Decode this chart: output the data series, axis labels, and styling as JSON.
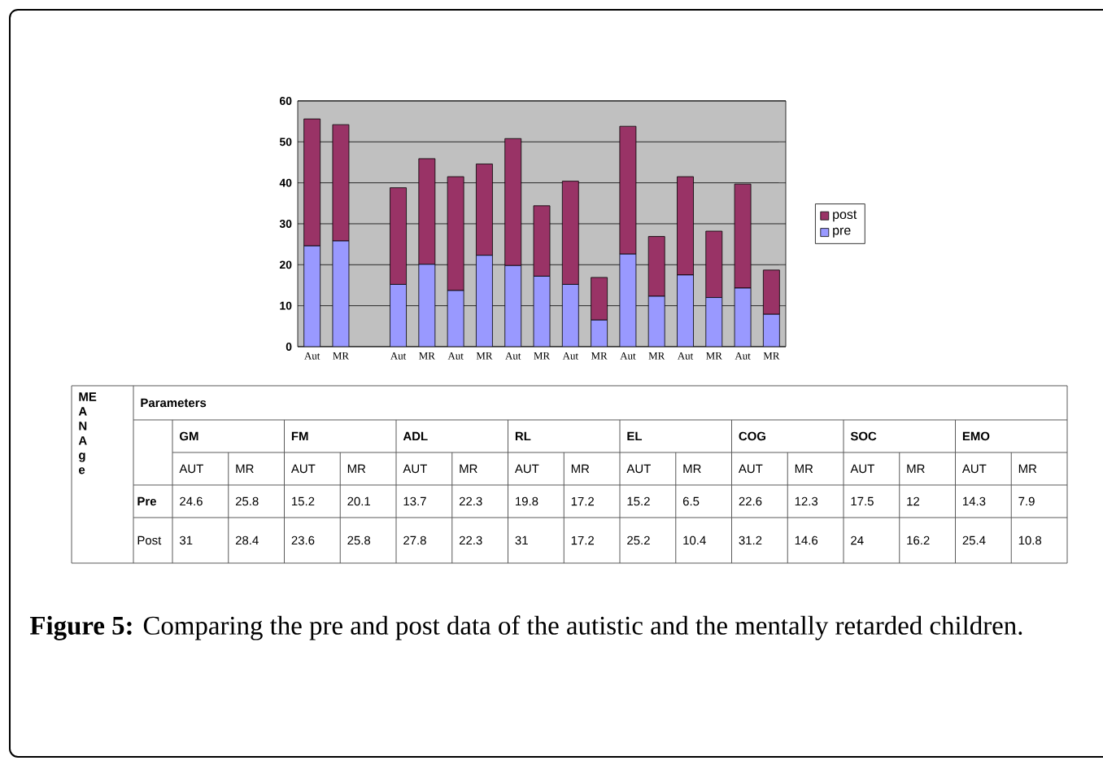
{
  "chart_data": [
    {
      "type": "bar",
      "stacked": true,
      "categories": [
        "Aut",
        "MR",
        null,
        "Aut",
        "MR",
        "Aut",
        "MR",
        "Aut",
        "MR",
        "Aut",
        "MR",
        "Aut",
        "MR",
        "Aut",
        "MR",
        "Aut",
        "MR"
      ],
      "series": [
        {
          "name": "pre",
          "color": "#9999ff",
          "values": [
            24.6,
            25.8,
            null,
            15.2,
            20.1,
            13.7,
            22.3,
            19.8,
            17.2,
            15.2,
            6.5,
            22.6,
            12.3,
            17.5,
            12,
            14.3,
            7.9
          ]
        },
        {
          "name": "post",
          "color": "#993366",
          "values": [
            31,
            28.4,
            null,
            23.6,
            25.8,
            27.8,
            22.3,
            31,
            17.2,
            25.2,
            10.4,
            31.2,
            14.6,
            24,
            16.2,
            25.4,
            10.8
          ]
        }
      ],
      "ylim": [
        0,
        60
      ],
      "yticks": [
        0,
        10,
        20,
        30,
        40,
        50,
        60
      ],
      "grid": "y",
      "legend": "right",
      "annotations": [
        "**Figure 5:** Comparing the pre and post data of the autistic and the mentally retarded children."
      ]
    },
    {
      "type": "other",
      "annotations": [
        "ME A N A g e",
        "Parameters",
        "GM",
        "FM",
        "ADL",
        "RL",
        "EL",
        "COG",
        "SOC",
        "EMO",
        "AUT",
        "MR",
        "AUT",
        "MR",
        "AUT",
        "MR",
        "AUT",
        "MR",
        "AUT",
        "MR",
        "AUT",
        "MR",
        "AUT",
        "MR",
        "AUT",
        "MR",
        "Pre",
        "24.6",
        "25.8",
        "15.2",
        "20.1",
        "13.7",
        "22.3",
        "19.8",
        "17.2",
        "15.2",
        "6.5",
        "22.6",
        "12.3",
        "17.5",
        "12",
        "14.3",
        "7.9",
        "Post",
        "31",
        "28.4",
        "23.6",
        "25.8",
        "27.8",
        "22.3",
        "31",
        "17.2",
        "25.2",
        "10.4",
        "31.2",
        "14.6",
        "24",
        "16.2",
        "25.4",
        "10.8"
      ]
    }
  ]
}
